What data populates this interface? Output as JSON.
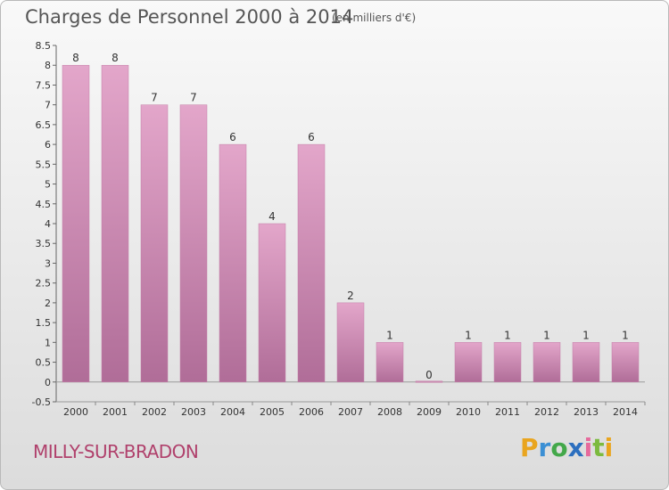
{
  "header": {
    "title": "Charges de Personnel 2000 à 2014",
    "subtitle": "(en milliers d'€)"
  },
  "footer": {
    "town": "MILLY-SUR-BRADON",
    "brand": {
      "letters": [
        "P",
        "r",
        "o",
        "x",
        "i",
        "t",
        "i"
      ]
    }
  },
  "colors": {
    "bar_top": "#e3a6ca",
    "bar_bottom": "#b06d98",
    "bar_edge": "#c47fa8",
    "town": "#b0416c"
  },
  "chart_data": {
    "type": "bar",
    "title": "Charges de Personnel 2000 à 2014",
    "subtitle": "(en milliers d'€)",
    "xlabel": "",
    "ylabel": "",
    "categories": [
      "2000",
      "2001",
      "2002",
      "2003",
      "2004",
      "2005",
      "2006",
      "2007",
      "2008",
      "2009",
      "2010",
      "2011",
      "2012",
      "2013",
      "2014"
    ],
    "values": [
      8,
      8,
      7,
      7,
      6,
      4,
      6,
      2,
      1,
      0,
      1,
      1,
      1,
      1,
      1
    ],
    "value_labels": [
      "8",
      "8",
      "7",
      "7",
      "6",
      "4",
      "6",
      "2",
      "1",
      "0",
      "1",
      "1",
      "1",
      "1",
      "1"
    ],
    "ylim": [
      -0.5,
      8.5
    ],
    "yticks": [
      "-0.5",
      "0",
      "0.5",
      "1",
      "1.5",
      "2",
      "2.5",
      "3",
      "3.5",
      "4",
      "4.5",
      "5",
      "5.5",
      "6",
      "6.5",
      "7",
      "7.5",
      "8",
      "8.5"
    ],
    "ytick_values": [
      -0.5,
      0,
      0.5,
      1,
      1.5,
      2,
      2.5,
      3,
      3.5,
      4,
      4.5,
      5,
      5.5,
      6,
      6.5,
      7,
      7.5,
      8,
      8.5
    ],
    "grid": false
  }
}
